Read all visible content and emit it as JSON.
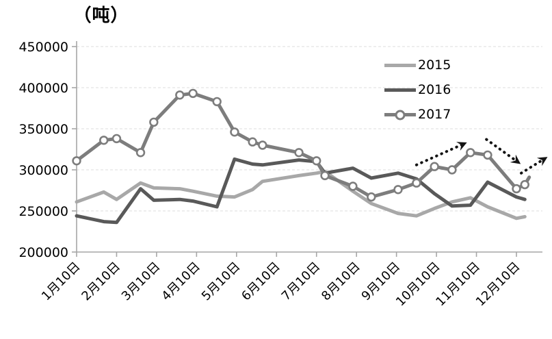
{
  "chart_data": {
    "type": "line",
    "title": "（吨）",
    "grid": true,
    "y_axis": {
      "min": 200000,
      "max": 450000,
      "step": 50000,
      "tick_labels": [
        "200000",
        "250000",
        "300000",
        "350000",
        "400000",
        "450000"
      ]
    },
    "x_axis": {
      "tick_labels": [
        "1月10日",
        "2月10日",
        "3月10日",
        "4月10日",
        "5月10日",
        "6月10日",
        "7月10日",
        "8月10日",
        "9月10日",
        "10月10日",
        "11月10日",
        "12月10日"
      ]
    },
    "x_month_positions": [
      0,
      0.68,
      1.0,
      1.6,
      1.93,
      2.58,
      2.91,
      3.51,
      3.95,
      4.4,
      4.65,
      5.56,
      6.0,
      6.21,
      6.91,
      7.37,
      8.04,
      8.5,
      8.95,
      9.39,
      9.85,
      10.28,
      11.0,
      11.21
    ],
    "series": [
      {
        "name": "2015",
        "color": "#a8a8a8",
        "marker": false,
        "values": [
          261000,
          273000,
          264000,
          284000,
          278000,
          277000,
          274000,
          268000,
          267000,
          276000,
          286000,
          293000,
          296000,
          298000,
          274000,
          259000,
          247000,
          244000,
          253000,
          261000,
          266000,
          255000,
          241000,
          243000
        ]
      },
      {
        "name": "2016",
        "color": "#595959",
        "marker": false,
        "values": [
          244000,
          237000,
          236000,
          277000,
          263000,
          264000,
          262000,
          255000,
          313000,
          307000,
          306000,
          312000,
          310000,
          296000,
          302000,
          290000,
          296000,
          289000,
          271000,
          256000,
          257000,
          285000,
          267000,
          264000
        ]
      },
      {
        "name": "2017",
        "color": "#7d7d7d",
        "marker": true,
        "marker_fill": "#ffffff",
        "values": [
          311000,
          336000,
          338000,
          321000,
          358000,
          391000,
          393000,
          383000,
          346000,
          334000,
          330000,
          321000,
          311000,
          293000,
          280000,
          267000,
          276000,
          284000,
          304000,
          300000,
          321000,
          318000,
          277000,
          282000
        ],
        "tail": {
          "x": 11.32,
          "value": 291000
        }
      }
    ],
    "legend": {
      "position": "top-right",
      "items": [
        "2015",
        "2016",
        "2017"
      ]
    },
    "annotations": {
      "arrow_color": "#141414",
      "arrows": [
        {
          "x1": 8.5,
          "y1": 306000,
          "x2": 9.7,
          "y2": 332000
        },
        {
          "x1": 10.25,
          "y1": 337000,
          "x2": 11.05,
          "y2": 309000
        },
        {
          "x1": 11.12,
          "y1": 296000,
          "x2": 11.72,
          "y2": 314000
        }
      ]
    }
  }
}
